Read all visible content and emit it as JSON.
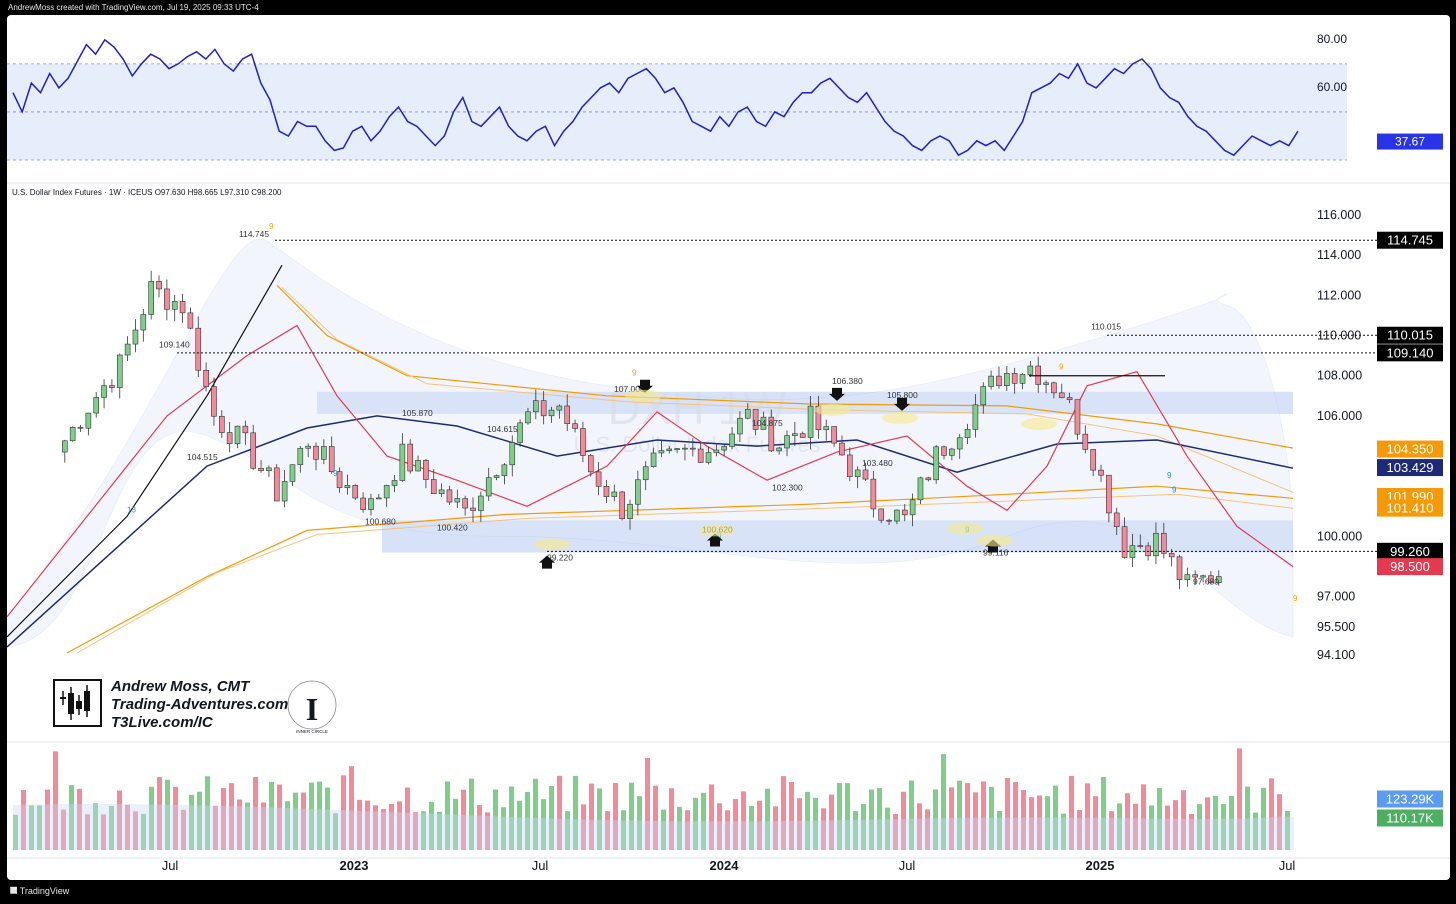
{
  "header": "AndrewMoss created with TradingView.com, Jul 19, 2025 09:33 UTC-4",
  "footer_brand": "TradingView",
  "symbol_line": "U.S. Dollar Index Futures · 1W · ICEUS  O97.630  H98.665  L97.310  C98.200",
  "watermark": {
    "ticker": "DXH 1W",
    "name": "U.S. Dollar Index Futures"
  },
  "author": {
    "name": "Andrew Moss, CMT",
    "site": "Trading-Adventures.com",
    "link": "T3Live.com/IC",
    "logo_caption": "INNER CIRCLE"
  },
  "rsi": {
    "ticks": [
      "80.00",
      "60.00"
    ],
    "last_value": "37.67",
    "colors": {
      "line": "#1f1fcc",
      "band": "#e6eefc",
      "label": "#2934e6"
    }
  },
  "price_axis": {
    "ticks": [
      "116.000",
      "114.000",
      "112.000",
      "110.000",
      "108.000",
      "106.000",
      "100.000",
      "97.000",
      "95.500",
      "94.100"
    ]
  },
  "price_labels": [
    {
      "text": "114.745",
      "bg": "#000000"
    },
    {
      "text": "110.015",
      "bg": "#000000"
    },
    {
      "text": "109.140",
      "bg": "#000000"
    },
    {
      "text": "104.350",
      "bg": "#f59a06"
    },
    {
      "text": "103.429",
      "bg": "#1e2a78"
    },
    {
      "text": "101.990",
      "bg": "#f59a06"
    },
    {
      "text": "101.410",
      "bg": "#f59a06"
    },
    {
      "text": "99.260",
      "bg": "#000000"
    },
    {
      "text": "98.500",
      "bg": "#e53950"
    }
  ],
  "volume_labels": [
    {
      "text": "123.29K",
      "bg": "#5b9cf2"
    },
    {
      "text": "110.17K",
      "bg": "#4caf62"
    }
  ],
  "x_axis": [
    {
      "text": "Jul",
      "bold": false
    },
    {
      "text": "2023",
      "bold": true
    },
    {
      "text": "Jul",
      "bold": false
    },
    {
      "text": "2024",
      "bold": true
    },
    {
      "text": "Jul",
      "bold": false
    },
    {
      "text": "2025",
      "bold": true
    },
    {
      "text": "Jul",
      "bold": false
    }
  ],
  "annotations": [
    "114.745",
    "109.140",
    "104.515",
    "105.870",
    "104.615",
    "107.000",
    "104.875",
    "106.380",
    "105.800",
    "103.480",
    "102.300",
    "100.680",
    "100.420",
    "99.220",
    "100.620",
    "99.116",
    "110.015",
    "97.680"
  ],
  "setup_counts": [
    "9",
    "13",
    "9",
    "9",
    "9",
    "9",
    "9",
    "9",
    "9",
    "9"
  ],
  "chart_data": {
    "type": "candlestick",
    "title": "U.S. Dollar Index Futures · 1W · ICEUS",
    "ohlc_last": {
      "open": 97.63,
      "high": 98.665,
      "low": 97.31,
      "close": 98.2
    },
    "y_range": [
      94.1,
      116.0
    ],
    "x_labels": [
      "Jul",
      "2023",
      "Jul",
      "2024",
      "Jul",
      "2025",
      "Jul"
    ],
    "key_levels": [
      114.745,
      110.015,
      109.14,
      99.26
    ],
    "moving_averages": [
      {
        "name": "EMA (red)",
        "last": 98.5,
        "color": "#e53950"
      },
      {
        "name": "SMA (navy)",
        "last": 103.429,
        "color": "#1e2a78"
      },
      {
        "name": "MA (orange)",
        "last": 104.35,
        "color": "#f59a06"
      },
      {
        "name": "MA (orange long)",
        "last": 101.99,
        "color": "#f59a06"
      },
      {
        "name": "MA (orange long 2)",
        "last": 101.41,
        "color": "#f59a06"
      }
    ],
    "close_path": [
      {
        "d": "2022-06",
        "c": 104.2
      },
      {
        "d": "2022-07",
        "c": 106.5
      },
      {
        "d": "2022-08",
        "c": 108.5
      },
      {
        "d": "2022-09",
        "c": 112.3
      },
      {
        "d": "2022-10",
        "c": 111.5
      },
      {
        "d": "2022-11",
        "c": 106.0
      },
      {
        "d": "2022-12",
        "c": 104.5
      },
      {
        "d": "2023-01",
        "c": 102.2
      },
      {
        "d": "2023-02",
        "c": 104.8
      },
      {
        "d": "2023-03",
        "c": 102.8
      },
      {
        "d": "2023-04",
        "c": 101.5
      },
      {
        "d": "2023-05",
        "c": 104.0
      },
      {
        "d": "2023-06",
        "c": 102.5
      },
      {
        "d": "2023-07",
        "c": 101.2
      },
      {
        "d": "2023-08",
        "c": 103.6
      },
      {
        "d": "2023-09",
        "c": 106.0
      },
      {
        "d": "2023-10",
        "c": 106.5
      },
      {
        "d": "2023-11",
        "c": 103.3
      },
      {
        "d": "2023-12",
        "c": 101.4
      },
      {
        "d": "2024-01",
        "c": 103.5
      },
      {
        "d": "2024-02",
        "c": 104.2
      },
      {
        "d": "2024-03",
        "c": 104.5
      },
      {
        "d": "2024-04",
        "c": 106.0
      },
      {
        "d": "2024-05",
        "c": 104.6
      },
      {
        "d": "2024-06",
        "c": 105.8
      },
      {
        "d": "2024-07",
        "c": 104.1
      },
      {
        "d": "2024-08",
        "c": 101.7
      },
      {
        "d": "2024-09",
        "c": 100.8
      },
      {
        "d": "2024-10",
        "c": 104.0
      },
      {
        "d": "2024-11",
        "c": 106.0
      },
      {
        "d": "2024-12",
        "c": 108.0
      },
      {
        "d": "2025-01",
        "c": 108.5
      },
      {
        "d": "2025-02",
        "c": 107.2
      },
      {
        "d": "2025-03",
        "c": 104.0
      },
      {
        "d": "2025-04",
        "c": 99.5
      },
      {
        "d": "2025-05",
        "c": 99.8
      },
      {
        "d": "2025-06",
        "c": 97.5
      },
      {
        "d": "2025-07",
        "c": 98.2
      }
    ],
    "rsi_last": 37.67,
    "volume_last": [
      123290,
      110170
    ]
  }
}
